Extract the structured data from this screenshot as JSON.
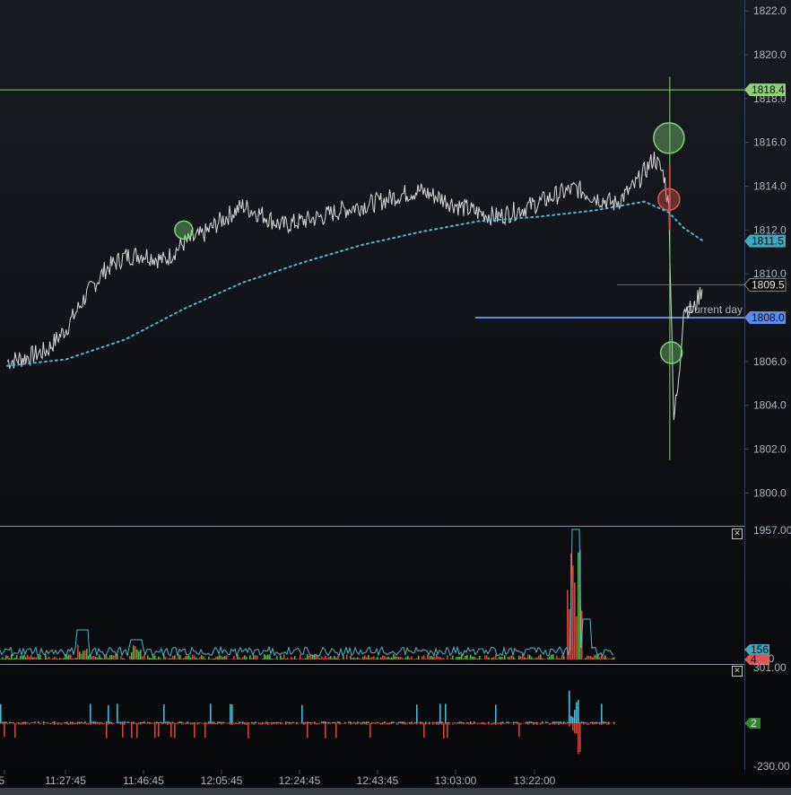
{
  "chart_data": [
    {
      "type": "line",
      "panel": "price",
      "y_axis": {
        "ticks": [
          "1822.0",
          "1820.0",
          "1818.0",
          "1816.0",
          "1814.0",
          "1812.0",
          "1810.0",
          "1808.0",
          "1806.0",
          "1804.0",
          "1802.0",
          "1800.0"
        ],
        "ylim": [
          1798.5,
          1822.5
        ]
      },
      "series": [
        {
          "values_time": [
            "11:10",
            "11:14",
            "11:18",
            "11:22",
            "11:26",
            "11:30",
            "11:34",
            "11:38",
            "11:42",
            "11:46",
            "11:50",
            "11:54",
            "11:58",
            "12:02",
            "12:06",
            "12:10",
            "12:14",
            "12:18",
            "12:22",
            "12:26",
            "12:30",
            "12:34",
            "12:38",
            "12:42",
            "12:46",
            "12:50",
            "12:54",
            "12:58",
            "13:02",
            "13:06",
            "13:10",
            "13:14",
            "13:18",
            "13:22",
            "13:24",
            "13:25",
            "13:26",
            "13:27",
            "13:28",
            "13:30",
            "13:32"
          ],
          "price": [
            1806.0,
            1806.2,
            1806.5,
            1807.5,
            1809.0,
            1810.2,
            1810.8,
            1810.9,
            1810.6,
            1811.4,
            1811.8,
            1812.5,
            1813.1,
            1812.7,
            1812.2,
            1812.4,
            1812.6,
            1812.9,
            1813.1,
            1813.3,
            1813.6,
            1813.8,
            1813.5,
            1813.1,
            1812.8,
            1812.6,
            1812.9,
            1813.2,
            1813.6,
            1813.9,
            1813.5,
            1813.2,
            1814.0,
            1815.3,
            1814.5,
            1813.0,
            1803.5,
            1805.0,
            1808.5,
            1808.3,
            1809.5
          ]
        },
        {
          "values_time": [
            "11:10",
            "11:22",
            "11:34",
            "11:46",
            "11:58",
            "12:10",
            "12:22",
            "12:34",
            "12:46",
            "12:58",
            "13:10",
            "13:20",
            "13:25",
            "13:28",
            "13:32"
          ],
          "vwap": [
            1805.8,
            1806.1,
            1807.0,
            1808.4,
            1809.6,
            1810.5,
            1811.3,
            1811.9,
            1812.4,
            1812.6,
            1812.9,
            1813.3,
            1812.8,
            1812.1,
            1811.5
          ]
        }
      ],
      "horizontal_lines": [
        {
          "label": "1818.4",
          "value": 1818.4,
          "color": "#8ed178"
        },
        {
          "label": "1808.0",
          "value": 1808.0,
          "color": "#5b8de8",
          "annotation": "Current day"
        }
      ],
      "price_tags": [
        {
          "label": "1811.5",
          "value": 1811.5,
          "color": "#3fa6bf"
        },
        {
          "label": "1809.5",
          "value": 1809.5,
          "color": "#0a0a0a"
        }
      ],
      "markers": [
        {
          "time": "11:46",
          "price": 1812.0,
          "color": "#7fd37a",
          "size": "small"
        },
        {
          "time": "13:25",
          "price": 1816.2,
          "color": "#7fd37a",
          "size": "large"
        },
        {
          "time": "13:25",
          "price": 1813.4,
          "color": "#e05555",
          "size": "medium"
        },
        {
          "time": "13:25.5",
          "price": 1806.4,
          "color": "#7fd37a",
          "size": "medium"
        }
      ]
    },
    {
      "type": "bar",
      "panel": "volume",
      "y_axis": {
        "ticks": [
          "1957.00",
          "4.00"
        ],
        "ylim": [
          4,
          1957
        ]
      },
      "tags": [
        {
          "label": "156",
          "color": "#3fa6bf"
        },
        {
          "label": "4",
          "color": "#e05555"
        }
      ]
    },
    {
      "type": "bar",
      "panel": "delta",
      "y_axis": {
        "ticks": [
          "301.00",
          "-230.00"
        ],
        "ylim": [
          -230,
          301
        ]
      },
      "tags": [
        {
          "label": "2",
          "color": "#2c8a2c"
        }
      ]
    }
  ],
  "x_axis": {
    "ticks": [
      "5",
      "11:27:45",
      "11:46:45",
      "12:05:45",
      "12:24:45",
      "12:43:45",
      "13:03:00",
      "13:22:00"
    ]
  },
  "colors": {
    "price_line": "#d9d9d9",
    "vwap": "#4fb7cf",
    "up": "#5fae48",
    "down": "#c44a44",
    "volume_outline": "#4fb7cf",
    "axis": "#3a4452"
  }
}
